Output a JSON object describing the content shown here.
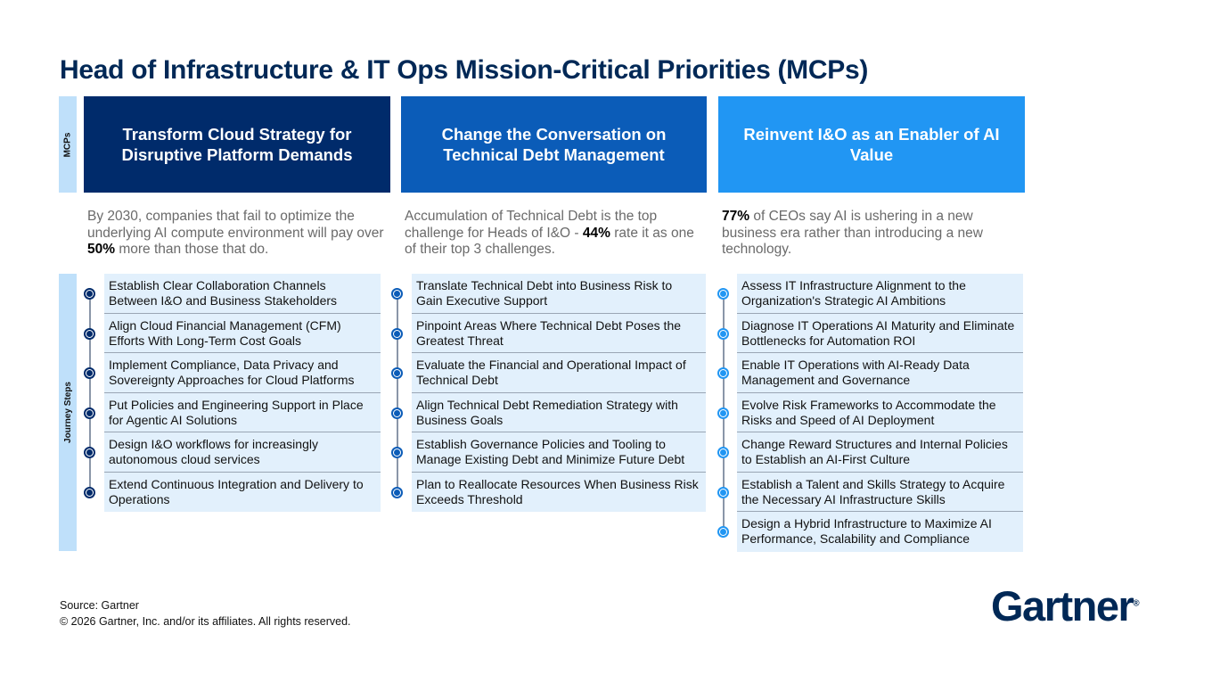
{
  "title": "Head of Infrastructure & IT Ops Mission-Critical Priorities (MCPs)",
  "labels": {
    "mcps": "MCPs",
    "journey": "Journey Steps"
  },
  "colors": [
    "#002b6b",
    "#0b5cb8",
    "#2196f3"
  ],
  "columns": [
    {
      "header": "Transform Cloud Strategy for Disruptive Platform Demands",
      "desc_pre": "By 2030, companies that fail to optimize the underlying AI compute environment will pay over ",
      "desc_bold": "50%",
      "desc_post": " more than those that do.",
      "steps": [
        "Establish Clear Collaboration Channels Between I&O and Business Stakeholders",
        "Align Cloud Financial Management (CFM) Efforts With Long-Term Cost Goals",
        "Implement Compliance, Data Privacy and Sovereignty Approaches for Cloud Platforms",
        "Put Policies and Engineering Support in Place for Agentic AI Solutions",
        "Design I&O workflows for increasingly autonomous cloud services",
        "Extend Continuous Integration and Delivery to Operations"
      ]
    },
    {
      "header": "Change the Conversation on Technical Debt Management",
      "desc_pre": "Accumulation of Technical Debt is the top challenge for Heads of I&O - ",
      "desc_bold": "44%",
      "desc_post": " rate it as one of their top 3 challenges.",
      "steps": [
        "Translate Technical Debt into Business Risk to Gain Executive Support",
        "Pinpoint Areas Where Technical Debt Poses the Greatest Threat",
        "Evaluate the Financial and Operational Impact of Technical Debt",
        "Align Technical Debt Remediation Strategy with Business Goals",
        "Establish Governance Policies and Tooling to Manage Existing Debt and Minimize Future Debt",
        "Plan to Reallocate Resources When Business Risk Exceeds Threshold"
      ]
    },
    {
      "header": "Reinvent I&O as an Enabler of AI Value",
      "desc_pre": "",
      "desc_bold": "77%",
      "desc_post": " of CEOs say AI is ushering in a new business era rather than introducing a new technology.",
      "steps": [
        "Assess IT Infrastructure Alignment to the Organization's Strategic AI Ambitions",
        "Diagnose IT Operations AI Maturity and Eliminate Bottlenecks for Automation ROI",
        "Enable IT Operations with AI-Ready Data Management and Governance",
        "Evolve Risk Frameworks to Accommodate the Risks and Speed of AI Deployment",
        "Change Reward Structures and Internal Policies to Establish an AI-First Culture",
        "Establish a Talent and Skills Strategy to Acquire the Necessary AI Infrastructure Skills",
        "Design a Hybrid Infrastructure to Maximize AI Performance, Scalability and Compliance"
      ]
    }
  ],
  "footer": {
    "source": "Source: Gartner",
    "copyright": "© 2026 Gartner, Inc. and/or its affiliates. All rights reserved."
  },
  "logo": "Gartner"
}
